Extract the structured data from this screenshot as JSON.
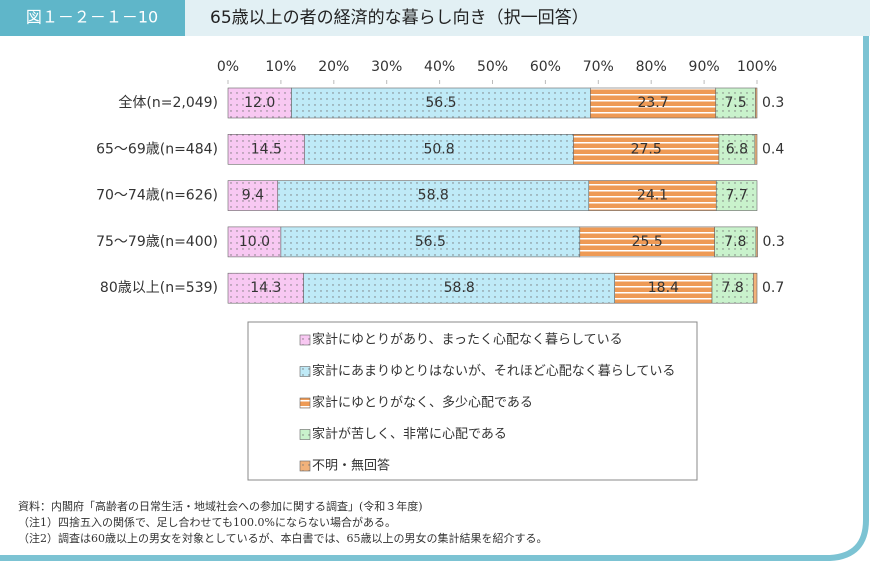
{
  "chart_data": {
    "type": "stacked-bar-horizontal",
    "figure_label": "図１－２－１－10",
    "title": "65歳以上の者の経済的な暮らし向き（択一回答）",
    "categories": [
      "全体(n=2,049)",
      "65～69歳(n=484)",
      "70～74歳(n=626)",
      "75～79歳(n=400)",
      "80歳以上(n=539)"
    ],
    "series": [
      {
        "name": "家計にゆとりがあり、まったく心配なく暮らしている",
        "color": "#f8c8f2",
        "pattern": "dots",
        "values": [
          12.0,
          14.5,
          9.4,
          10.0,
          14.3
        ],
        "value_labels": [
          "12.0",
          "14.5",
          "9.4",
          "10.0",
          "14.3"
        ]
      },
      {
        "name": "家計にあまりゆとりはないが、それほど心配なく暮らしている",
        "color": "#bfeaf7",
        "pattern": "dots",
        "values": [
          56.5,
          50.8,
          58.8,
          56.5,
          58.8
        ]
      },
      {
        "name": "家計にゆとりがなく、多少心配である",
        "color": "#ee9a55",
        "pattern": "stripes",
        "values": [
          23.7,
          27.5,
          24.1,
          25.5,
          18.4
        ]
      },
      {
        "name": "家計が苦しく、非常に心配である",
        "color": "#c9f2cc",
        "pattern": "dots",
        "values": [
          7.5,
          6.8,
          7.7,
          7.8,
          7.8
        ]
      },
      {
        "name": "不明・無回答",
        "color": "#f2b27a",
        "pattern": "dots",
        "values": [
          0.3,
          0.4,
          null,
          0.3,
          0.7
        ]
      }
    ],
    "xlim": [
      0,
      100
    ],
    "xticks": [
      {
        "value": 0,
        "label": "0%"
      },
      {
        "value": 10,
        "label": "10%"
      },
      {
        "value": 20,
        "label": "20%"
      },
      {
        "value": 30,
        "label": "30%"
      },
      {
        "value": 40,
        "label": "40%"
      },
      {
        "value": 50,
        "label": "50%"
      },
      {
        "value": 60,
        "label": "60%"
      },
      {
        "value": 70,
        "label": "70%"
      },
      {
        "value": 80,
        "label": "80%"
      },
      {
        "value": 90,
        "label": "90%"
      },
      {
        "value": 100,
        "label": "100%"
      }
    ],
    "notes": [
      "資料：内閣府「高齢者の日常生活・地域社会への参加に関する調査」(令和３年度)",
      "（注1）四捨五入の関係で、足し合わせても100.0%にならない場合がある。",
      "（注2）調査は60歳以上の男女を対象としているが、本白書では、65歳以上の男女の集計結果を紹介する。"
    ]
  }
}
